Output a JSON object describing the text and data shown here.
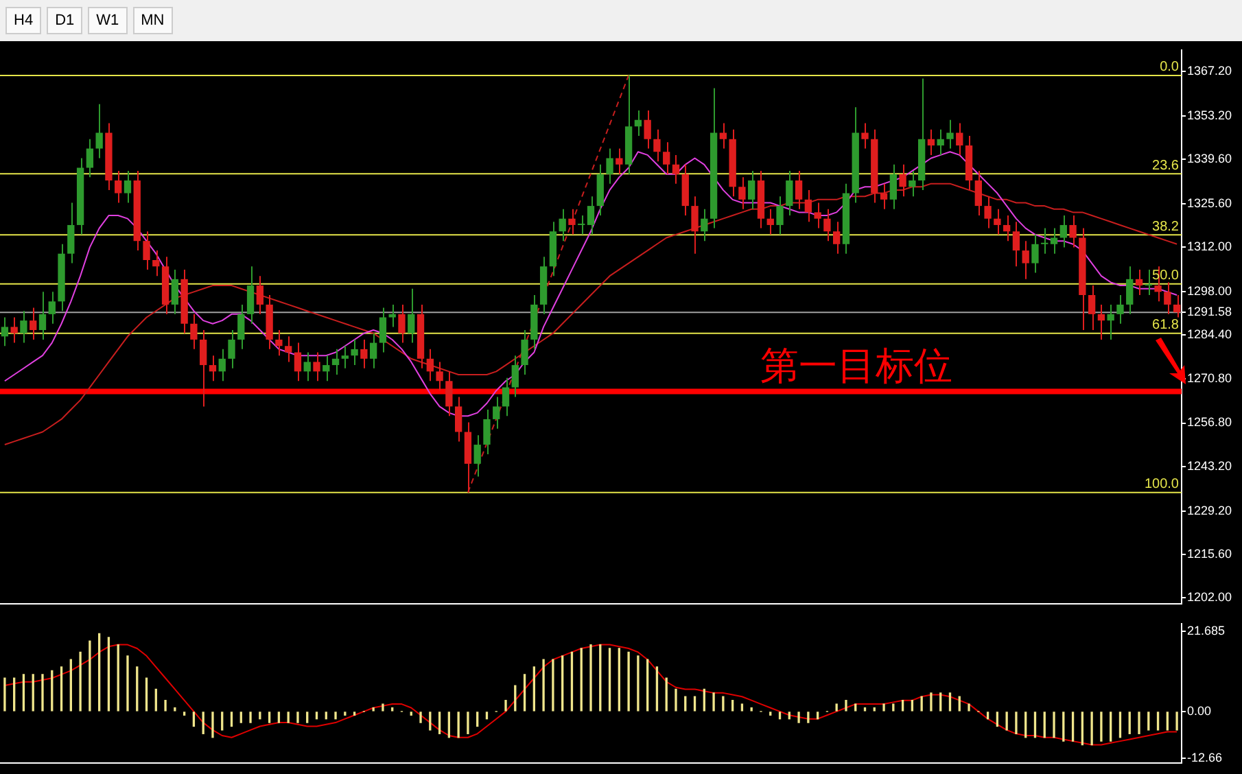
{
  "chart_data": [
    {
      "type": "candlestick",
      "annotations": [
        "H4",
        "D1",
        "W1",
        "MN",
        {
          "text": "0.0",
          "y": 1366
        },
        {
          "text": "23.6",
          "y": 1335.1
        },
        {
          "text": "38.2",
          "y": 1315.9
        },
        {
          "text": "50.0",
          "y": 1300.5
        },
        {
          "text": "61.8",
          "y": 1285
        },
        {
          "text": "100.0",
          "y": 1235
        }
      ],
      "tick_labels": "y",
      "categories": [
        null,
        null,
        null,
        null,
        null,
        null,
        null,
        null,
        null,
        null,
        null,
        null,
        null,
        null,
        null,
        null,
        null,
        null,
        null,
        null,
        null,
        null,
        null,
        null,
        null,
        null,
        null,
        null,
        null,
        null,
        null,
        null,
        null,
        null,
        null,
        null,
        null,
        null,
        null,
        null,
        null,
        null,
        null,
        null,
        null,
        null,
        null,
        null,
        null,
        null,
        null,
        null,
        null,
        null,
        null,
        null,
        null,
        null,
        null,
        null,
        null,
        null,
        null,
        null,
        null,
        null,
        null,
        null,
        null,
        null,
        null,
        null,
        null,
        null,
        null,
        null,
        null,
        null,
        null,
        null,
        null,
        null,
        null,
        null,
        null,
        null,
        null,
        null,
        null,
        null,
        null,
        null,
        null,
        null,
        null,
        null,
        null,
        null,
        null,
        null,
        null,
        null,
        null,
        null,
        null,
        null,
        null,
        null,
        null,
        null,
        null,
        null,
        null,
        null,
        null,
        null,
        null,
        null,
        null,
        null,
        null,
        null,
        null,
        null,
        null
      ],
      "colors": [
        "#2e9b2e",
        "#e01e1e",
        "#2e9b2e",
        "#e01e1e",
        "#2e9b2e",
        "#2e9b2e",
        "#2e9b2e",
        "#2e9b2e",
        "#2e9b2e",
        "#2e9b2e",
        "#2e9b2e",
        "#e01e1e",
        "#e01e1e",
        "#2e9b2e",
        "#e01e1e",
        "#e01e1e",
        "#e01e1e",
        "#e01e1e",
        "#2e9b2e",
        "#e01e1e",
        "#e01e1e",
        "#e01e1e",
        "#e01e1e",
        "#2e9b2e",
        "#2e9b2e",
        "#2e9b2e",
        "#2e9b2e",
        "#e01e1e",
        "#e01e1e",
        "#e01e1e",
        "#e01e1e",
        "#e01e1e",
        "#2e9b2e",
        "#e01e1e",
        "#2e9b2e",
        "#2e9b2e",
        "#2e9b2e",
        "#2e9b2e",
        "#e01e1e",
        "#2e9b2e",
        "#2e9b2e",
        "#2e9b2e",
        "#e01e1e",
        "#2e9b2e",
        "#e01e1e",
        "#e01e1e",
        "#e01e1e",
        "#e01e1e",
        "#e01e1e",
        "#e01e1e",
        "#2e9b2e",
        "#2e9b2e",
        "#2e9b2e",
        "#2e9b2e",
        "#2e9b2e",
        "#2e9b2e",
        "#2e9b2e",
        "#2e9b2e",
        "#2e9b2e",
        "#2e9b2e",
        "#e01e1e",
        "#2e9b2e",
        "#2e9b2e",
        "#2e9b2e",
        "#2e9b2e",
        "#e01e1e",
        "#2e9b2e",
        "#2e9b2e",
        "#e01e1e",
        "#e01e1e",
        "#e01e1e",
        "#e01e1e",
        "#e01e1e",
        "#e01e1e",
        "#2e9b2e",
        "#2e9b2e",
        "#e01e1e",
        "#e01e1e",
        "#e01e1e",
        "#2e9b2e",
        "#e01e1e",
        "#e01e1e",
        "#2e9b2e",
        "#2e9b2e",
        "#e01e1e",
        "#e01e1e",
        "#e01e1e",
        "#e01e1e",
        "#e01e1e",
        "#2e9b2e",
        "#2e9b2e",
        "#e01e1e",
        "#e01e1e",
        "#e01e1e",
        "#2e9b2e",
        "#e01e1e",
        "#2e9b2e",
        "#2e9b2e",
        "#e01e1e",
        "#2e9b2e",
        "#2e9b2e",
        "#e01e1e",
        "#e01e1e",
        "#e01e1e",
        "#e01e1e",
        "#e01e1e",
        "#e01e1e",
        "#e01e1e",
        "#e01e1e",
        "#2e9b2e",
        "#2e9b2e",
        "#2e9b2e",
        "#2e9b2e",
        "#e01e1e",
        "#e01e1e",
        "#e01e1e",
        "#e01e1e",
        "#2e9b2e",
        "#2e9b2e",
        "#2e9b2e",
        "#e01e1e",
        "#2e9b2e",
        "#e01e1e",
        "#e01e1e",
        "#e01e1e"
      ],
      "ohlc": [
        [
          1284,
          1290,
          1281,
          1287
        ],
        [
          1287,
          1290,
          1282,
          1285
        ],
        [
          1285,
          1292,
          1282,
          1289
        ],
        [
          1289,
          1293,
          1283,
          1286
        ],
        [
          1286,
          1298,
          1283,
          1291
        ],
        [
          1291,
          1298,
          1288,
          1295
        ],
        [
          1295,
          1313,
          1292,
          1310
        ],
        [
          1310,
          1326,
          1307,
          1319
        ],
        [
          1319,
          1340,
          1316,
          1337
        ],
        [
          1337,
          1346,
          1334,
          1343
        ],
        [
          1343,
          1357,
          1340,
          1348
        ],
        [
          1348,
          1351,
          1330,
          1333
        ],
        [
          1333,
          1336,
          1326,
          1329
        ],
        [
          1329,
          1336,
          1326,
          1333
        ],
        [
          1333,
          1336,
          1311,
          1314
        ],
        [
          1314,
          1317,
          1305,
          1308
        ],
        [
          1308,
          1311,
          1303,
          1306
        ],
        [
          1306,
          1309,
          1291,
          1294
        ],
        [
          1294,
          1305,
          1291,
          1302
        ],
        [
          1302,
          1305,
          1285,
          1288
        ],
        [
          1288,
          1291,
          1280,
          1283
        ],
        [
          1283,
          1286,
          1262,
          1275
        ],
        [
          1275,
          1278,
          1270,
          1273
        ],
        [
          1273,
          1280,
          1270,
          1277
        ],
        [
          1277,
          1286,
          1274,
          1283
        ],
        [
          1283,
          1294,
          1280,
          1291
        ],
        [
          1291,
          1306,
          1288,
          1300
        ],
        [
          1300,
          1303,
          1291,
          1294
        ],
        [
          1294,
          1297,
          1280,
          1283
        ],
        [
          1283,
          1286,
          1278,
          1281
        ],
        [
          1281,
          1284,
          1276,
          1279
        ],
        [
          1279,
          1282,
          1270,
          1273
        ],
        [
          1273,
          1279,
          1270,
          1276
        ],
        [
          1276,
          1279,
          1270,
          1273
        ],
        [
          1273,
          1278,
          1270,
          1275
        ],
        [
          1275,
          1280,
          1272,
          1277
        ],
        [
          1277,
          1281,
          1274,
          1278
        ],
        [
          1278,
          1283,
          1275,
          1280
        ],
        [
          1280,
          1283,
          1274,
          1277
        ],
        [
          1277,
          1285,
          1274,
          1282
        ],
        [
          1282,
          1293,
          1279,
          1290
        ],
        [
          1290,
          1294,
          1287,
          1291
        ],
        [
          1291,
          1294,
          1282,
          1285
        ],
        [
          1285,
          1299,
          1282,
          1291
        ],
        [
          1291,
          1294,
          1274,
          1277
        ],
        [
          1277,
          1280,
          1270,
          1273
        ],
        [
          1273,
          1276,
          1267,
          1270
        ],
        [
          1270,
          1273,
          1259,
          1262
        ],
        [
          1262,
          1265,
          1251,
          1254
        ],
        [
          1254,
          1257,
          1235,
          1244
        ],
        [
          1244,
          1253,
          1240,
          1250
        ],
        [
          1250,
          1261,
          1247,
          1258
        ],
        [
          1258,
          1265,
          1255,
          1262
        ],
        [
          1262,
          1271,
          1259,
          1268
        ],
        [
          1268,
          1278,
          1265,
          1275
        ],
        [
          1275,
          1286,
          1272,
          1283
        ],
        [
          1283,
          1297,
          1280,
          1294
        ],
        [
          1294,
          1309,
          1291,
          1306
        ],
        [
          1306,
          1320,
          1303,
          1317
        ],
        [
          1317,
          1324,
          1314,
          1321
        ],
        [
          1321,
          1324,
          1316,
          1319
        ],
        [
          1319,
          1322,
          1316,
          1319
        ],
        [
          1319,
          1328,
          1316,
          1325
        ],
        [
          1325,
          1338,
          1322,
          1335
        ],
        [
          1335,
          1343,
          1332,
          1340
        ],
        [
          1340,
          1343,
          1335,
          1338
        ],
        [
          1338,
          1366,
          1335,
          1350
        ],
        [
          1350,
          1355,
          1347,
          1352
        ],
        [
          1352,
          1355,
          1343,
          1346
        ],
        [
          1346,
          1349,
          1339,
          1342
        ],
        [
          1342,
          1345,
          1335,
          1338
        ],
        [
          1338,
          1341,
          1332,
          1335
        ],
        [
          1335,
          1338,
          1322,
          1325
        ],
        [
          1325,
          1328,
          1310,
          1317
        ],
        [
          1317,
          1324,
          1314,
          1321
        ],
        [
          1321,
          1362,
          1318,
          1348
        ],
        [
          1348,
          1351,
          1343,
          1346
        ],
        [
          1346,
          1349,
          1328,
          1331
        ],
        [
          1331,
          1334,
          1324,
          1327
        ],
        [
          1327,
          1336,
          1324,
          1333
        ],
        [
          1333,
          1336,
          1318,
          1321
        ],
        [
          1321,
          1324,
          1316,
          1319
        ],
        [
          1319,
          1328,
          1316,
          1325
        ],
        [
          1325,
          1336,
          1322,
          1333
        ],
        [
          1333,
          1336,
          1324,
          1327
        ],
        [
          1327,
          1330,
          1320,
          1323
        ],
        [
          1323,
          1326,
          1318,
          1321
        ],
        [
          1321,
          1324,
          1314,
          1317
        ],
        [
          1317,
          1320,
          1310,
          1313
        ],
        [
          1313,
          1332,
          1310,
          1329
        ],
        [
          1329,
          1356,
          1326,
          1348
        ],
        [
          1348,
          1351,
          1343,
          1346
        ],
        [
          1346,
          1349,
          1326,
          1329
        ],
        [
          1329,
          1332,
          1324,
          1327
        ],
        [
          1327,
          1338,
          1324,
          1335
        ],
        [
          1335,
          1338,
          1328,
          1331
        ],
        [
          1331,
          1336,
          1328,
          1333
        ],
        [
          1333,
          1365,
          1330,
          1346
        ],
        [
          1346,
          1349,
          1341,
          1344
        ],
        [
          1344,
          1349,
          1341,
          1346
        ],
        [
          1346,
          1352,
          1343,
          1348
        ],
        [
          1348,
          1351,
          1341,
          1344
        ],
        [
          1344,
          1347,
          1330,
          1333
        ],
        [
          1333,
          1336,
          1322,
          1325
        ],
        [
          1325,
          1328,
          1318,
          1321
        ],
        [
          1321,
          1324,
          1316,
          1319
        ],
        [
          1319,
          1322,
          1314,
          1317
        ],
        [
          1317,
          1320,
          1306,
          1311
        ],
        [
          1311,
          1314,
          1302,
          1307
        ],
        [
          1307,
          1316,
          1304,
          1313
        ],
        [
          1313,
          1318,
          1310,
          1313
        ],
        [
          1313,
          1318,
          1310,
          1315
        ],
        [
          1315,
          1322,
          1312,
          1319
        ],
        [
          1319,
          1322,
          1312,
          1315
        ],
        [
          1315,
          1318,
          1286,
          1297
        ],
        [
          1297,
          1300,
          1286,
          1291
        ],
        [
          1291,
          1294,
          1283,
          1289
        ],
        [
          1289,
          1294,
          1283,
          1291
        ],
        [
          1291,
          1297,
          1288,
          1294
        ],
        [
          1294,
          1306,
          1291,
          1302
        ],
        [
          1302,
          1305,
          1297,
          1300
        ],
        [
          1300,
          1305,
          1297,
          1300
        ],
        [
          1300,
          1306,
          1295,
          1298
        ],
        [
          1298,
          1301,
          1291,
          1294
        ],
        [
          1294,
          1297,
          1290,
          1291.58
        ]
      ],
      "series": [
        {
          "type": "line",
          "color": "#e040e0",
          "values": [
            1270,
            1272,
            1274,
            1276,
            1278,
            1282,
            1288,
            1295,
            1303,
            1312,
            1318,
            1322,
            1322,
            1321,
            1318,
            1314,
            1310,
            1305,
            1300,
            1296,
            1292,
            1289,
            1288,
            1289,
            1291,
            1291,
            1289,
            1286,
            1283,
            1280,
            1279,
            1278,
            1278,
            1278,
            1278,
            1279,
            1281,
            1283,
            1285,
            1286,
            1285,
            1283,
            1280,
            1276,
            1271,
            1266,
            1262,
            1260,
            1259,
            1259,
            1260,
            1263,
            1267,
            1270,
            1272,
            1276,
            1279,
            1287,
            1293,
            1299,
            1305,
            1311,
            1317,
            1324,
            1330,
            1334,
            1337,
            1342,
            1341,
            1338,
            1335,
            1335,
            1338,
            1340,
            1338,
            1334,
            1330,
            1327,
            1326,
            1326,
            1326,
            1326,
            1325,
            1324,
            1323,
            1323,
            1322,
            1322,
            1323,
            1326,
            1330,
            1331,
            1331,
            1332,
            1333,
            1334,
            1336,
            1338,
            1340,
            1341,
            1342,
            1341,
            1338,
            1335,
            1332,
            1329,
            1325,
            1321,
            1318,
            1316,
            1315,
            1314,
            1314,
            1313,
            1311,
            1307,
            1303,
            1301,
            1300,
            1300,
            1299,
            1299,
            1299,
            1298,
            1297
          ]
        },
        {
          "type": "line",
          "color": "#c81e1e",
          "values": [
            1250,
            1251,
            1252,
            1253,
            1254,
            1256,
            1258,
            1261,
            1264,
            1268,
            1272,
            1276,
            1280,
            1284,
            1287,
            1290,
            1292,
            1294,
            1296,
            1297,
            1298,
            1299,
            1300,
            1300,
            1300,
            1299,
            1298,
            1297,
            1296,
            1295,
            1294,
            1293,
            1292,
            1291,
            1290,
            1289,
            1288,
            1287,
            1286,
            1285,
            1283,
            1281,
            1279,
            1277,
            1276,
            1275,
            1274,
            1273,
            1272,
            1272,
            1272,
            1272,
            1273,
            1275,
            1277,
            1279,
            1281,
            1283,
            1285,
            1288,
            1291,
            1294,
            1297,
            1300,
            1303,
            1305,
            1307,
            1309,
            1311,
            1313,
            1315,
            1316,
            1317,
            1318,
            1319,
            1320,
            1321,
            1322,
            1323,
            1324,
            1324,
            1325,
            1325,
            1326,
            1326,
            1326,
            1327,
            1327,
            1327,
            1328,
            1328,
            1328,
            1329,
            1329,
            1330,
            1330,
            1331,
            1331,
            1332,
            1332,
            1332,
            1331,
            1330,
            1329,
            1328,
            1327,
            1327,
            1326,
            1326,
            1325,
            1325,
            1324,
            1324,
            1323,
            1323,
            1322,
            1321,
            1320,
            1319,
            1318,
            1317,
            1316,
            1315,
            1314,
            1313
          ]
        },
        {
          "type": "line",
          "color": "#c81e1e",
          "line_style": "dashed",
          "values": [
            null,
            null,
            null,
            null,
            null,
            null,
            null,
            null,
            null,
            null,
            null,
            null,
            null,
            null,
            null,
            null,
            null,
            null,
            null,
            null,
            null,
            null,
            null,
            null,
            null,
            null,
            null,
            null,
            null,
            null,
            null,
            null,
            null,
            null,
            null,
            null,
            null,
            null,
            null,
            null,
            null,
            null,
            null,
            null,
            null,
            null,
            null,
            null,
            null,
            1235,
            null,
            null,
            null,
            null,
            null,
            null,
            null,
            null,
            null,
            null,
            null,
            null,
            null,
            null,
            null,
            null,
            1366,
            null,
            null,
            null,
            null,
            null,
            null,
            null,
            null,
            null,
            null,
            null,
            null,
            null,
            null,
            null,
            null,
            null,
            null,
            null,
            null,
            null,
            null,
            null,
            null,
            null,
            null,
            null,
            null,
            null,
            null,
            null,
            null,
            null,
            null,
            null,
            null,
            null,
            null,
            null,
            null,
            null,
            null,
            null,
            null,
            null,
            null,
            null,
            null,
            null,
            null,
            null,
            null,
            null,
            null,
            null,
            null,
            null,
            null
          ]
        }
      ],
      "ylim": [
        1200,
        1374
      ],
      "yticks": [
        {
          "value": 1202,
          "label": "1202.00"
        },
        {
          "value": 1215.6,
          "label": "1215.60"
        },
        {
          "value": 1229.2,
          "label": "1229.20"
        },
        {
          "value": 1243.2,
          "label": "1243.20"
        },
        {
          "value": 1256.8,
          "label": "1256.80"
        },
        {
          "value": 1270.8,
          "label": "1270.80"
        },
        {
          "value": 1284.4,
          "label": "1284.40"
        },
        {
          "value": 1291.58,
          "label": "1291.58"
        },
        {
          "value": 1298,
          "label": "1298.00"
        },
        {
          "value": 1312,
          "label": "1312.00"
        },
        {
          "value": 1325.6,
          "label": "1325.60"
        },
        {
          "value": 1339.6,
          "label": "1339.60"
        },
        {
          "value": 1353.2,
          "label": "1353.20"
        },
        {
          "value": 1367.2,
          "label": "1367.20"
        }
      ],
      "ref_lines": [
        {
          "axis": "y",
          "value": 1366,
          "color": "#e6e64a"
        },
        {
          "axis": "y",
          "value": 1335.1,
          "color": "#e6e64a"
        },
        {
          "axis": "y",
          "value": 1315.9,
          "color": "#e6e64a"
        },
        {
          "axis": "y",
          "value": 1300.5,
          "color": "#e6e64a"
        },
        {
          "axis": "y",
          "value": 1285,
          "color": "#e6e64a"
        },
        {
          "axis": "y",
          "value": 1235,
          "color": "#e6e64a"
        },
        {
          "axis": "y",
          "value": 1291.58,
          "color": "#a0a0a0"
        },
        {
          "axis": "y",
          "value": 1266.7,
          "label": "第一目标位",
          "color": "#ff0000"
        }
      ]
    },
    {
      "type": "bar",
      "tick_labels": "y",
      "categories": [
        null,
        null,
        null,
        null,
        null,
        null,
        null,
        null,
        null,
        null,
        null,
        null,
        null,
        null,
        null,
        null,
        null,
        null,
        null,
        null,
        null,
        null,
        null,
        null,
        null,
        null,
        null,
        null,
        null,
        null,
        null,
        null,
        null,
        null,
        null,
        null,
        null,
        null,
        null,
        null,
        null,
        null,
        null,
        null,
        null,
        null,
        null,
        null,
        null,
        null,
        null,
        null,
        null,
        null,
        null,
        null,
        null,
        null,
        null,
        null,
        null,
        null,
        null,
        null,
        null,
        null,
        null,
        null,
        null,
        null,
        null,
        null,
        null,
        null,
        null,
        null,
        null,
        null,
        null,
        null,
        null,
        null,
        null,
        null,
        null,
        null,
        null,
        null,
        null,
        null,
        null,
        null,
        null,
        null,
        null,
        null,
        null,
        null,
        null,
        null,
        null,
        null,
        null,
        null,
        null,
        null,
        null,
        null,
        null,
        null,
        null,
        null,
        null,
        null,
        null,
        null,
        null,
        null,
        null,
        null,
        null,
        null,
        null,
        null,
        null
      ],
      "series": [
        {
          "type": "bar",
          "color": "#f0e68c",
          "values": [
            9,
            9,
            10,
            10,
            10,
            11,
            12,
            14,
            16,
            19,
            21,
            20,
            18,
            15,
            12,
            9,
            6,
            3,
            1,
            -1,
            -4,
            -6,
            -7,
            -5,
            -4,
            -3,
            -3,
            -2,
            -3,
            -3,
            -3,
            -3,
            -3,
            -2,
            -2,
            -2,
            -1,
            -1,
            0,
            1,
            2,
            1,
            0,
            -1,
            -3,
            -5,
            -6,
            -7,
            -7,
            -6,
            -4,
            -2,
            0,
            3,
            7,
            10,
            12,
            14,
            14,
            15,
            16,
            17,
            18,
            18,
            17,
            17,
            16,
            15,
            14,
            12,
            9,
            6,
            4,
            4,
            6,
            5,
            4,
            3,
            2,
            1,
            0,
            -1,
            -2,
            -2,
            -3,
            -3,
            -2,
            0,
            2,
            3,
            2,
            1,
            1,
            2,
            2,
            3,
            3,
            4,
            5,
            5,
            5,
            4,
            2,
            0,
            -2,
            -4,
            -5,
            -6,
            -7,
            -7,
            -7,
            -7,
            -8,
            -8,
            -9,
            -9,
            -8,
            -8,
            -7,
            -6,
            -6,
            -5,
            -5,
            -5,
            -5
          ]
        },
        {
          "type": "line",
          "color": "#e00000",
          "values": [
            7,
            7.5,
            8,
            8,
            8.5,
            9,
            10,
            11,
            12.5,
            14,
            16,
            17.5,
            18,
            18,
            17,
            15,
            12,
            9,
            6,
            3,
            0,
            -3,
            -5,
            -6.5,
            -7,
            -6,
            -5,
            -4,
            -3.5,
            -3,
            -3,
            -3.5,
            -4,
            -4,
            -3.5,
            -3,
            -2,
            -1,
            0,
            1,
            1.5,
            2,
            2,
            1,
            -1,
            -3,
            -5,
            -6.5,
            -7,
            -7,
            -6,
            -4,
            -2,
            0,
            3,
            6,
            9,
            12,
            14,
            15,
            16,
            17,
            17.5,
            18,
            18,
            17.5,
            17,
            16,
            14,
            11,
            8,
            6.5,
            6,
            6,
            5.5,
            5,
            5,
            4.5,
            4,
            3,
            2,
            1,
            0,
            -1,
            -1.5,
            -2,
            -2,
            -1,
            0,
            1,
            2,
            2,
            2,
            2,
            2.5,
            3,
            3,
            4,
            4.5,
            4.5,
            4,
            3,
            2,
            0,
            -2,
            -3.5,
            -5,
            -6,
            -6.5,
            -6.5,
            -7,
            -7,
            -7.5,
            -8,
            -8.5,
            -9,
            -9,
            -8.5,
            -8,
            -7.5,
            -7,
            -6.5,
            -6,
            -5.5,
            -5.5
          ]
        }
      ],
      "ylim": [
        -13.9,
        23.7
      ],
      "yticks": [
        21.685,
        {
          "value": 0,
          "label": "0.00"
        },
        -12.66
      ]
    }
  ]
}
